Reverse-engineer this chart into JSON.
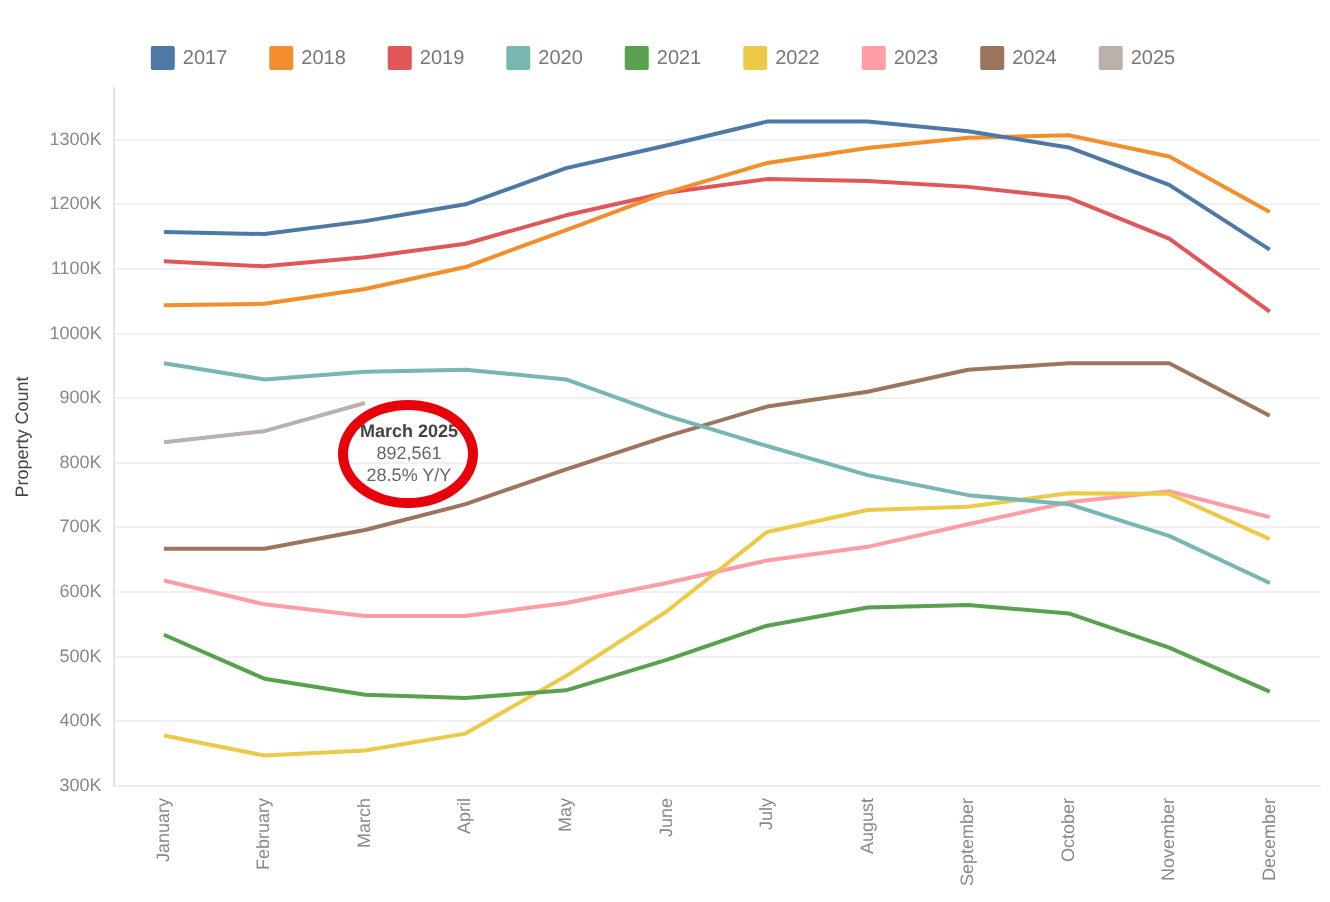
{
  "chart_data": {
    "type": "line",
    "ylabel": "Property Count",
    "legend": "top",
    "grid": "y",
    "line_style": "solid",
    "categories": [
      "January",
      "February",
      "March",
      "April",
      "May",
      "June",
      "July",
      "August",
      "September",
      "October",
      "November",
      "December"
    ],
    "ylim": [
      300000,
      1380000
    ],
    "yticks": [
      {
        "value": 300000,
        "label": "300K"
      },
      {
        "value": 400000,
        "label": "400K"
      },
      {
        "value": 500000,
        "label": "500K"
      },
      {
        "value": 600000,
        "label": "600K"
      },
      {
        "value": 700000,
        "label": "700K"
      },
      {
        "value": 800000,
        "label": "800K"
      },
      {
        "value": 900000,
        "label": "900K"
      },
      {
        "value": 1000000,
        "label": "1000K"
      },
      {
        "value": 1100000,
        "label": "1100K"
      },
      {
        "value": 1200000,
        "label": "1200K"
      },
      {
        "value": 1300000,
        "label": "1300K"
      }
    ],
    "series": [
      {
        "name": "2017",
        "color": "#4e79a7",
        "values": [
          1157000,
          1154000,
          1174000,
          1200000,
          1256000,
          1291000,
          1328000,
          1328000,
          1313000,
          1288000,
          1230000,
          1130000
        ]
      },
      {
        "name": "2018",
        "color": "#f28e2b",
        "values": [
          1044000,
          1046000,
          1069000,
          1103000,
          1160000,
          1218000,
          1264000,
          1287000,
          1303000,
          1307000,
          1274000,
          1188000
        ]
      },
      {
        "name": "2019",
        "color": "#e15759",
        "values": [
          1112000,
          1104000,
          1118000,
          1139000,
          1183000,
          1218000,
          1239000,
          1236000,
          1227000,
          1210000,
          1147000,
          1034000
        ]
      },
      {
        "name": "2020",
        "color": "#76b7b2",
        "values": [
          954000,
          929000,
          941000,
          944000,
          929000,
          873000,
          826000,
          781000,
          750000,
          736000,
          687000,
          614000
        ]
      },
      {
        "name": "2021",
        "color": "#59a14f",
        "values": [
          534000,
          466000,
          441000,
          436000,
          448000,
          495000,
          548000,
          576000,
          580000,
          567000,
          514000,
          446000
        ]
      },
      {
        "name": "2022",
        "color": "#edc948",
        "values": [
          378000,
          347000,
          355000,
          381000,
          470000,
          570000,
          693000,
          727000,
          732000,
          753000,
          752000,
          682000
        ]
      },
      {
        "name": "2023",
        "color": "#ff9da7",
        "values": [
          618000,
          581000,
          563000,
          563000,
          583000,
          614000,
          649000,
          670000,
          705000,
          739000,
          756000,
          716000
        ]
      },
      {
        "name": "2024",
        "color": "#9c755f",
        "values": [
          667000,
          667000,
          696000,
          736000,
          790000,
          841000,
          887000,
          910000,
          944000,
          954000,
          954000,
          873000
        ]
      },
      {
        "name": "2025",
        "color": "#bab0ac",
        "values": [
          832000,
          849000,
          892561,
          null,
          null,
          null,
          null,
          null,
          null,
          null,
          null,
          null
        ]
      }
    ],
    "annotations": [
      {
        "text": "March 2025\n892,561\n28.5% Y/Y",
        "x": "March",
        "y": 892561
      }
    ]
  }
}
